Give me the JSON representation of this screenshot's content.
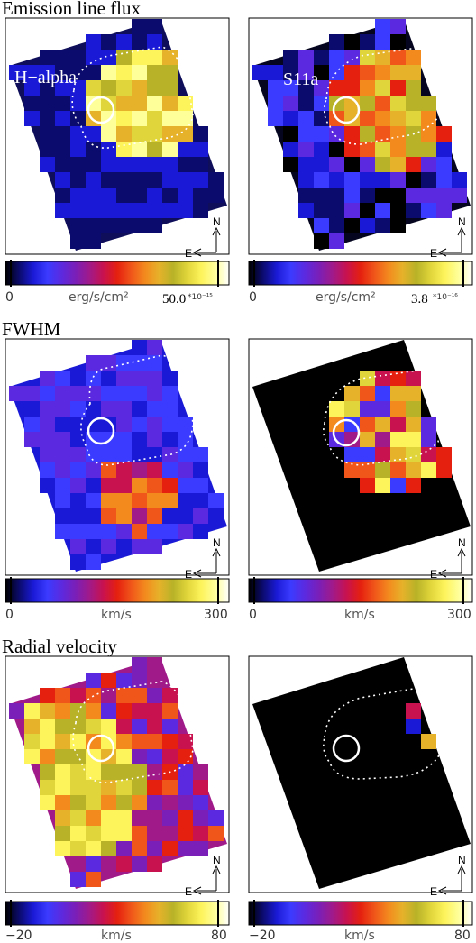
{
  "colors": {
    "colormap": [
      "#000000",
      "#0b0b6e",
      "#1a1ad6",
      "#3b3bff",
      "#5b2ae0",
      "#7a1fb8",
      "#a01a8a",
      "#c8124f",
      "#e5200f",
      "#f0561a",
      "#f38a1e",
      "#e6b22a",
      "#b8b228",
      "#e0d53a",
      "#fdf35a",
      "#ffff9a",
      "#ffffff"
    ],
    "contour": "#ffffff",
    "background": "#000000"
  },
  "rows": [
    {
      "title": "Emission line flux",
      "unit": "erg/s/cm²",
      "panels": [
        {
          "label": "H−alpha",
          "min": "0",
          "max_mantissa": "50.0",
          "max_exponent": "*10⁻¹⁵",
          "compass_n": "N",
          "compass_e": "E"
        },
        {
          "label": "S11a",
          "min": "0",
          "max_mantissa": "3.8",
          "max_exponent": "*10⁻¹⁶",
          "compass_n": "N",
          "compass_e": "E"
        }
      ]
    },
    {
      "title": "FWHM",
      "unit": "km/s",
      "panels": [
        {
          "label": "",
          "min": "0",
          "max": "300",
          "compass_n": "N",
          "compass_e": "E"
        },
        {
          "label": "",
          "min": "0",
          "max": "300",
          "compass_n": "N",
          "compass_e": "E"
        }
      ]
    },
    {
      "title": "Radial velocity",
      "unit": "km/s",
      "panels": [
        {
          "label": "",
          "min": "−20",
          "max": "80",
          "compass_n": "N",
          "compass_e": "E"
        },
        {
          "label": "",
          "min": "−20",
          "max": "80",
          "compass_n": "N",
          "compass_e": "E"
        }
      ]
    }
  ]
}
